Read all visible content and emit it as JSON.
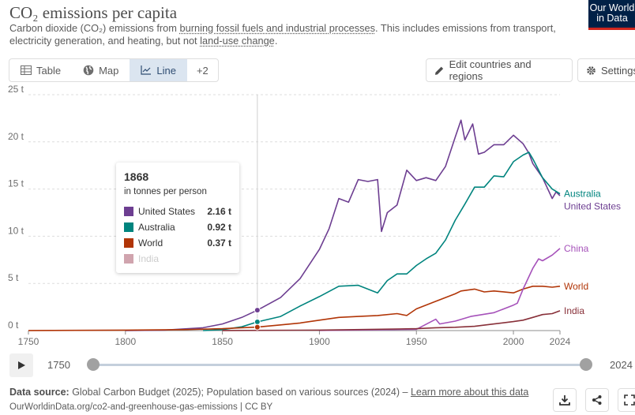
{
  "header": {
    "title": "CO₂ emissions per capita",
    "subtitle_a": "Carbon dioxide (CO₂) emissions from ",
    "subtitle_link1": "burning fossil fuels and industrial processes",
    "subtitle_b": ". This includes emissions from transport, electricity generation, and heating, but not ",
    "subtitle_link2": "land-use change",
    "subtitle_c": ".",
    "logo_line1": "Our World",
    "logo_line2": "in Data"
  },
  "toolbar": {
    "tabs": [
      {
        "label": "Table",
        "icon": "table-icon"
      },
      {
        "label": "Map",
        "icon": "globe-icon"
      },
      {
        "label": "Line",
        "icon": "line-chart-icon",
        "active": true
      }
    ],
    "more_label": "+2",
    "edit_label": "Edit countries and regions",
    "settings_label": "Settings"
  },
  "tooltip": {
    "year": "1868",
    "unit": "in tonnes per person",
    "rows": [
      {
        "name": "United States",
        "value": "2.16 t",
        "color": "#6d3e91"
      },
      {
        "name": "Australia",
        "value": "0.92 t",
        "color": "#00847e"
      },
      {
        "name": "World",
        "value": "0.37 t",
        "color": "#b13507"
      },
      {
        "name": "India",
        "value": "",
        "color": "#d0a4ae"
      }
    ]
  },
  "timeline": {
    "start": "1750",
    "end": "2024"
  },
  "footer": {
    "source_label": "Data source:",
    "source_text": " Global Carbon Budget (2025); Population based on various sources (2024) – ",
    "learn_more": "Learn more about this data",
    "url": "OurWorldinData.org/co2-and-greenhouse-gas-emissions | CC BY"
  },
  "chart_data": {
    "type": "line",
    "title": "CO₂ emissions per capita",
    "ylabel": "",
    "xlim": [
      1750,
      2024
    ],
    "ylim": [
      0,
      25
    ],
    "x_ticks": [
      1750,
      1800,
      1850,
      1900,
      1950,
      2000,
      2024
    ],
    "y_ticks": [
      {
        "value": 0,
        "label": "0 t"
      },
      {
        "value": 5,
        "label": "5 t"
      },
      {
        "value": 10,
        "label": "10 t"
      },
      {
        "value": 15,
        "label": "15 t"
      },
      {
        "value": 20,
        "label": "20 t"
      },
      {
        "value": 25,
        "label": "25 t"
      }
    ],
    "grid": true,
    "highlight_year": 1868,
    "series": [
      {
        "name": "United States",
        "color": "#6d3e91",
        "x": [
          1800,
          1820,
          1840,
          1850,
          1860,
          1868,
          1880,
          1890,
          1900,
          1905,
          1910,
          1915,
          1920,
          1925,
          1930,
          1932,
          1935,
          1940,
          1945,
          1950,
          1955,
          1960,
          1965,
          1970,
          1973,
          1975,
          1979,
          1982,
          1985,
          1990,
          1995,
          2000,
          2005,
          2008,
          2010,
          2015,
          2020,
          2022,
          2024
        ],
        "y": [
          0.0,
          0.05,
          0.3,
          0.7,
          1.4,
          2.16,
          3.5,
          5.5,
          8.6,
          10.8,
          14.0,
          13.6,
          16.0,
          15.8,
          16.0,
          10.5,
          12.5,
          13.3,
          17.0,
          15.9,
          16.2,
          15.9,
          17.4,
          20.5,
          22.3,
          20.2,
          21.9,
          18.7,
          18.9,
          19.7,
          19.7,
          20.7,
          19.8,
          18.8,
          17.7,
          16.2,
          14.0,
          14.7,
          14.3
        ]
      },
      {
        "name": "Australia",
        "color": "#00847e",
        "x": [
          1840,
          1850,
          1860,
          1868,
          1880,
          1890,
          1900,
          1910,
          1920,
          1930,
          1935,
          1940,
          1945,
          1950,
          1955,
          1960,
          1965,
          1970,
          1975,
          1980,
          1985,
          1990,
          1995,
          2000,
          2005,
          2008,
          2010,
          2015,
          2020,
          2024
        ],
        "y": [
          0.0,
          0.1,
          0.4,
          0.92,
          1.5,
          2.6,
          3.6,
          4.7,
          4.8,
          4.0,
          5.3,
          6.0,
          6.0,
          6.9,
          7.6,
          8.2,
          9.6,
          11.7,
          13.4,
          15.2,
          15.2,
          16.4,
          16.3,
          17.9,
          18.6,
          18.9,
          18.2,
          16.2,
          15.0,
          14.5
        ]
      },
      {
        "name": "World",
        "color": "#b13507",
        "x": [
          1750,
          1800,
          1830,
          1850,
          1860,
          1868,
          1880,
          1890,
          1900,
          1910,
          1920,
          1930,
          1940,
          1945,
          1950,
          1960,
          1970,
          1973,
          1980,
          1985,
          1990,
          2000,
          2005,
          2010,
          2013,
          2015,
          2020,
          2024
        ],
        "y": [
          0.01,
          0.05,
          0.1,
          0.2,
          0.3,
          0.37,
          0.6,
          0.8,
          1.1,
          1.4,
          1.5,
          1.6,
          1.8,
          1.6,
          2.3,
          3.1,
          3.9,
          4.2,
          4.4,
          4.1,
          4.2,
          4.0,
          4.4,
          4.7,
          4.7,
          4.7,
          4.6,
          4.7
        ]
      },
      {
        "name": "China",
        "color": "#a652ba",
        "x": [
          1900,
          1950,
          1960,
          1962,
          1970,
          1978,
          1990,
          2000,
          2002,
          2005,
          2010,
          2013,
          2015,
          2020,
          2024
        ],
        "y": [
          0.02,
          0.13,
          1.2,
          0.7,
          1.0,
          1.5,
          1.9,
          2.7,
          2.9,
          4.4,
          6.6,
          7.6,
          7.4,
          8.0,
          8.7
        ]
      },
      {
        "name": "India",
        "color": "#883039",
        "x": [
          1850,
          1900,
          1950,
          1960,
          1970,
          1980,
          1990,
          2000,
          2005,
          2010,
          2015,
          2020,
          2024
        ],
        "y": [
          0.01,
          0.05,
          0.2,
          0.3,
          0.35,
          0.45,
          0.7,
          0.95,
          1.1,
          1.4,
          1.7,
          1.8,
          2.1
        ]
      }
    ]
  }
}
